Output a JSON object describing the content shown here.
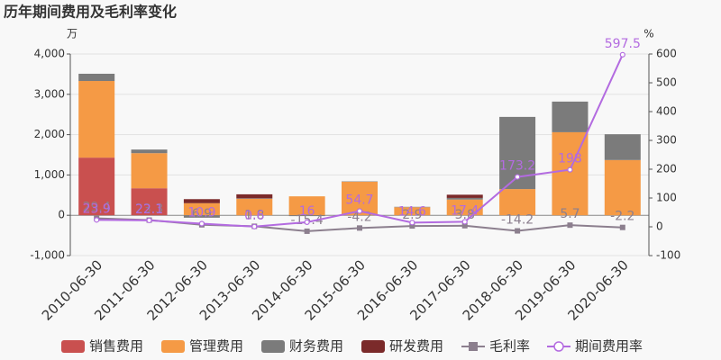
{
  "chart_data": {
    "type": "bar",
    "title": "历年期间费用及毛利率变化",
    "y_unit": "万",
    "y2_unit": "%",
    "categories": [
      "2010-06-30",
      "2011-06-30",
      "2012-06-30",
      "2013-06-30",
      "2014-06-30",
      "2015-06-30",
      "2016-06-30",
      "2017-06-30",
      "2018-06-30",
      "2019-06-30",
      "2020-06-30"
    ],
    "ylim": [
      -1000,
      4000
    ],
    "yticks": [
      {
        "value": -1000,
        "label": "-1,000"
      },
      0,
      {
        "value": 1000,
        "label": "1,000"
      },
      {
        "value": 2000,
        "label": "2,000"
      },
      {
        "value": 3000,
        "label": "3,000"
      },
      {
        "value": 4000,
        "label": "4,000"
      }
    ],
    "y2lim": [
      -100,
      600
    ],
    "y2ticks": [
      -100,
      0,
      100,
      200,
      300,
      400,
      500,
      600
    ],
    "grid": true,
    "legend": "bottom",
    "series": [
      {
        "name": "销售费用",
        "color": "#c9504f",
        "values": [
          1430,
          670,
          0,
          0,
          0,
          0,
          0,
          0,
          0,
          0,
          0
        ]
      },
      {
        "name": "管理费用",
        "color": "#f59a45",
        "values": [
          1900,
          870,
          300,
          410,
          470,
          830,
          200,
          390,
          650,
          2060,
          1370
        ]
      },
      {
        "name": "财务费用",
        "color": "#7b7b7b",
        "values": [
          180,
          90,
          -60,
          10,
          -20,
          10,
          10,
          40,
          1790,
          760,
          640
        ]
      },
      {
        "name": "研发费用",
        "color": "#7b2a2a",
        "values": [
          0,
          0,
          100,
          100,
          0,
          0,
          0,
          80,
          0,
          0,
          0
        ]
      },
      {
        "name": "毛利率",
        "color": "#8c7f8e",
        "type": "line",
        "axis": "y2",
        "marker": "square",
        "values": [
          29.4,
          23.3,
          6.9,
          1.8,
          -15.4,
          -4.2,
          2.9,
          3.8,
          -14.2,
          5.7,
          -2.2
        ]
      },
      {
        "name": "期间费用率",
        "color": "#b36be0",
        "type": "line",
        "axis": "y2",
        "marker": "circle",
        "values": [
          23.9,
          22.1,
          10.9,
          0.6,
          16,
          54.7,
          14.6,
          17.4,
          173.2,
          198,
          597.5
        ]
      }
    ]
  }
}
